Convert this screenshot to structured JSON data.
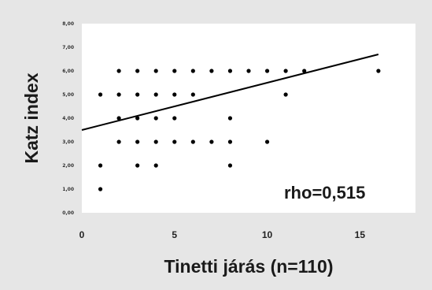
{
  "chart_data": {
    "type": "scatter",
    "xlabel": "Tinetti járás (n=110)",
    "ylabel": "Katz index",
    "annotation": "rho=0,515",
    "xlim": [
      0,
      18
    ],
    "ylim": [
      0,
      8
    ],
    "x_ticks": [
      0,
      5,
      10,
      15
    ],
    "x_tick_labels": [
      "0",
      "5",
      "10",
      "15"
    ],
    "y_ticks": [
      0,
      1,
      2,
      3,
      4,
      5,
      6,
      7,
      8
    ],
    "y_tick_labels": [
      "0,00",
      "1,00",
      "2,00",
      "3,00",
      "4,00",
      "5,00",
      "6,00",
      "7,00",
      "8,00"
    ],
    "points": [
      {
        "x": 1,
        "y": 1
      },
      {
        "x": 1,
        "y": 2
      },
      {
        "x": 1,
        "y": 5
      },
      {
        "x": 2,
        "y": 6
      },
      {
        "x": 3,
        "y": 6
      },
      {
        "x": 4,
        "y": 6
      },
      {
        "x": 5,
        "y": 6
      },
      {
        "x": 6,
        "y": 6
      },
      {
        "x": 7,
        "y": 6
      },
      {
        "x": 8,
        "y": 6
      },
      {
        "x": 9,
        "y": 6
      },
      {
        "x": 10,
        "y": 6
      },
      {
        "x": 11,
        "y": 6
      },
      {
        "x": 12,
        "y": 6
      },
      {
        "x": 16,
        "y": 6
      },
      {
        "x": 2,
        "y": 5
      },
      {
        "x": 3,
        "y": 5
      },
      {
        "x": 4,
        "y": 5
      },
      {
        "x": 5,
        "y": 5
      },
      {
        "x": 6,
        "y": 5
      },
      {
        "x": 11,
        "y": 5
      },
      {
        "x": 2,
        "y": 4
      },
      {
        "x": 3,
        "y": 4
      },
      {
        "x": 4,
        "y": 4
      },
      {
        "x": 5,
        "y": 4
      },
      {
        "x": 8,
        "y": 4
      },
      {
        "x": 2,
        "y": 3
      },
      {
        "x": 3,
        "y": 3
      },
      {
        "x": 4,
        "y": 3
      },
      {
        "x": 5,
        "y": 3
      },
      {
        "x": 6,
        "y": 3
      },
      {
        "x": 7,
        "y": 3
      },
      {
        "x": 8,
        "y": 3
      },
      {
        "x": 10,
        "y": 3
      },
      {
        "x": 3,
        "y": 2
      },
      {
        "x": 4,
        "y": 2
      },
      {
        "x": 8,
        "y": 2
      }
    ],
    "trendline": {
      "x": [
        0,
        16
      ],
      "y": [
        3.5,
        6.7
      ]
    },
    "grid": false,
    "legend": false,
    "colors": {
      "background": "#e6e6e6",
      "plot_area": "#ffffff",
      "marker": "#000000",
      "line": "#000000"
    }
  }
}
